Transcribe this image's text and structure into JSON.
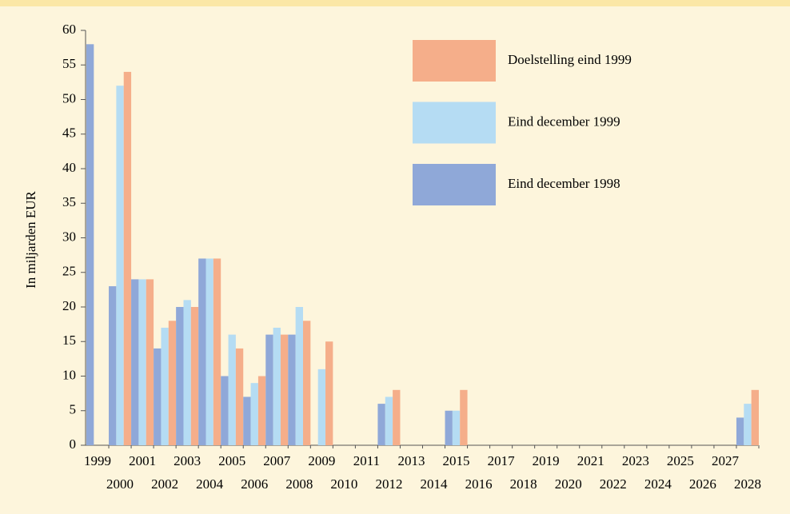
{
  "chart_data": {
    "type": "bar",
    "y_label": "In miljarden EUR",
    "categories": [
      "1999",
      "2000",
      "2001",
      "2002",
      "2003",
      "2004",
      "2005",
      "2006",
      "2007",
      "2008",
      "2009",
      "2010",
      "2011",
      "2012",
      "2013",
      "2014",
      "2015",
      "2016",
      "2017",
      "2018",
      "2019",
      "2020",
      "2021",
      "2022",
      "2023",
      "2024",
      "2025",
      "2026",
      "2027",
      "2028"
    ],
    "series": [
      {
        "name": "Eind december 1998",
        "color": "#8fa8d8",
        "values": [
          58,
          23,
          24,
          14,
          20,
          27,
          10,
          7,
          16,
          16,
          0,
          0,
          0,
          6,
          0,
          0,
          5,
          0,
          0,
          0,
          0,
          0,
          0,
          0,
          0,
          0,
          0,
          0,
          0,
          4
        ]
      },
      {
        "name": "Eind december 1999",
        "color": "#b5dcf3",
        "values": [
          0,
          52,
          24,
          17,
          21,
          27,
          16,
          9,
          17,
          20,
          11,
          0,
          0,
          7,
          0,
          0,
          5,
          0,
          0,
          0,
          0,
          0,
          0,
          0,
          0,
          0,
          0,
          0,
          0,
          6
        ]
      },
      {
        "name": "Doelstelling eind 1999",
        "color": "#f5ae8a",
        "values": [
          0,
          54,
          24,
          18,
          20,
          27,
          14,
          10,
          16,
          18,
          15,
          0,
          0,
          8,
          0,
          0,
          8,
          0,
          0,
          0,
          0,
          0,
          0,
          0,
          0,
          0,
          0,
          0,
          0,
          8
        ]
      }
    ],
    "legend_order": [
      2,
      1,
      0
    ],
    "ylim": [
      0,
      60
    ],
    "yticks": [
      0,
      5,
      10,
      15,
      20,
      25,
      30,
      35,
      40,
      45,
      50,
      55,
      60
    ]
  }
}
